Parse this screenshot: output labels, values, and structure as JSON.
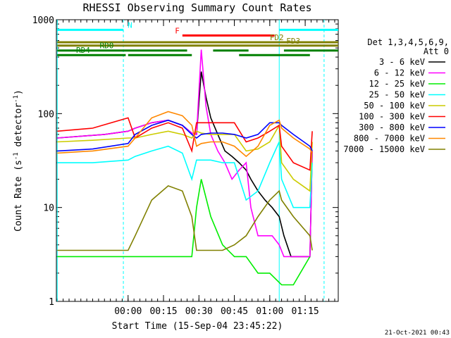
{
  "chart_data": {
    "type": "line",
    "title": "RHESSI Observing Summary Count Rates",
    "xlabel": "Start Time (15-Sep-04 23:45:22)",
    "ylabel_parts": [
      "Count Rate (s",
      "-1",
      " detector",
      "-1",
      ")"
    ],
    "yscale": "log",
    "xlim_min": [
      -15.37,
      104
    ],
    "ylim": [
      1,
      1000
    ],
    "x_ticks": [
      {
        "value": 15,
        "label": "00:00"
      },
      {
        "value": 30,
        "label": "00:15"
      },
      {
        "value": 45,
        "label": "00:30"
      },
      {
        "value": 60,
        "label": "00:45"
      },
      {
        "value": 75,
        "label": "01:00"
      },
      {
        "value": 90,
        "label": "01:15"
      }
    ],
    "y_ticks": [
      {
        "value": 1,
        "label": "1"
      },
      {
        "value": 10,
        "label": "10"
      },
      {
        "value": 100,
        "label": "100"
      },
      {
        "value": 1000,
        "label": "1000"
      }
    ],
    "legend_header": [
      "Det 1,3,4,5,6,9,",
      "Att 0"
    ],
    "legend_placement": "right-outside",
    "series": [
      {
        "name": "3 - 6 keV",
        "color": "#000000",
        "x": [
          -15,
          5,
          15,
          18,
          25,
          32,
          38,
          42,
          44,
          46,
          48,
          50,
          53,
          56,
          59,
          62,
          65,
          67,
          70,
          73,
          76,
          79,
          81,
          84,
          88,
          92,
          93
        ],
        "y": [
          55,
          60,
          65,
          70,
          80,
          85,
          75,
          62,
          60,
          280,
          150,
          90,
          60,
          40,
          35,
          30,
          25,
          20,
          15,
          12,
          10,
          8,
          5,
          3,
          3,
          3,
          40
        ]
      },
      {
        "name": "6 - 12 keV",
        "color": "#ff00ff",
        "x": [
          -15,
          5,
          15,
          18,
          25,
          32,
          38,
          42,
          44,
          46,
          48,
          50,
          53,
          56,
          59,
          62,
          65,
          67,
          70,
          73,
          76,
          79,
          81,
          84,
          88,
          92,
          93
        ],
        "y": [
          55,
          60,
          65,
          70,
          80,
          85,
          75,
          62,
          60,
          480,
          120,
          60,
          40,
          30,
          20,
          25,
          30,
          10,
          5,
          5,
          5,
          4,
          3,
          3,
          3,
          3,
          40
        ]
      },
      {
        "name": "12 - 25 keV",
        "color": "#00ee00",
        "x": [
          -15,
          0,
          15,
          18,
          25,
          32,
          38,
          42,
          44,
          46,
          50,
          55,
          60,
          65,
          70,
          75,
          80,
          85,
          92
        ],
        "y": [
          3,
          3,
          3,
          3,
          3,
          3,
          3,
          3,
          10,
          20,
          8,
          4,
          3,
          3,
          2,
          2,
          1.5,
          1.5,
          3
        ]
      },
      {
        "name": "25 - 50 keV",
        "color": "#00ffff",
        "x": [
          -15,
          0,
          15,
          18,
          25,
          32,
          38,
          42,
          44,
          46,
          50,
          55,
          60,
          65,
          70,
          75,
          79,
          80,
          85,
          92,
          93
        ],
        "y": [
          30,
          30,
          32,
          35,
          40,
          45,
          38,
          20,
          32,
          32,
          32,
          30,
          30,
          12,
          15,
          30,
          50,
          20,
          10,
          10,
          30
        ]
      },
      {
        "name": "50 - 100 keV",
        "color": "#cccc00",
        "x": [
          -15,
          0,
          15,
          18,
          25,
          32,
          38,
          42,
          44,
          46,
          50,
          55,
          60,
          65,
          70,
          75,
          79,
          80,
          85,
          92,
          93
        ],
        "y": [
          50,
          52,
          55,
          55,
          60,
          65,
          60,
          55,
          65,
          62,
          60,
          60,
          60,
          40,
          42,
          50,
          75,
          30,
          20,
          15,
          50
        ]
      },
      {
        "name": "100 - 300 keV",
        "color": "#ff0000",
        "x": [
          -15,
          0,
          15,
          18,
          25,
          32,
          38,
          42,
          44,
          46,
          50,
          55,
          60,
          65,
          70,
          75,
          79,
          80,
          85,
          92,
          93
        ],
        "y": [
          65,
          70,
          90,
          55,
          70,
          80,
          70,
          40,
          80,
          80,
          80,
          80,
          80,
          50,
          55,
          65,
          75,
          45,
          30,
          25,
          65
        ]
      },
      {
        "name": "300 - 800 keV",
        "color": "#0000ff",
        "x": [
          -15,
          0,
          15,
          18,
          25,
          32,
          38,
          42,
          44,
          46,
          50,
          55,
          60,
          65,
          70,
          75,
          79,
          80,
          85,
          92,
          93
        ],
        "y": [
          40,
          42,
          48,
          60,
          75,
          85,
          75,
          60,
          55,
          60,
          62,
          62,
          60,
          55,
          60,
          80,
          80,
          75,
          60,
          45,
          40
        ]
      },
      {
        "name": "800 - 7000 keV",
        "color": "#ff8800",
        "x": [
          -15,
          0,
          15,
          18,
          25,
          32,
          38,
          42,
          44,
          46,
          50,
          55,
          60,
          65,
          70,
          75,
          79,
          80,
          85,
          92,
          93
        ],
        "y": [
          38,
          40,
          45,
          55,
          90,
          105,
          95,
          75,
          45,
          48,
          50,
          50,
          45,
          35,
          45,
          75,
          85,
          70,
          55,
          42,
          38
        ]
      },
      {
        "name": "7000 - 15000 keV",
        "color": "#808000",
        "x": [
          -15,
          0,
          15,
          18,
          25,
          32,
          38,
          42,
          44,
          46,
          50,
          55,
          60,
          65,
          70,
          75,
          79,
          80,
          85,
          92,
          93
        ],
        "y": [
          3.5,
          3.5,
          3.5,
          5,
          12,
          17,
          15,
          8,
          3.5,
          3.5,
          3.5,
          3.5,
          4,
          5,
          8,
          12,
          15,
          12,
          8,
          5,
          3.5
        ]
      }
    ],
    "flags": [
      {
        "label": "N",
        "color": "#00ffff",
        "y_value": 780,
        "segments": [
          [
            -15,
            13
          ],
          [
            79,
            104
          ]
        ]
      },
      {
        "label": "F",
        "color": "#ff0000",
        "y_value": 680,
        "segments": [
          [
            38,
            77
          ]
        ]
      },
      {
        "label": "FD2",
        "color": "#808000",
        "y_value": 575,
        "segments": [
          [
            -15,
            104
          ]
        ]
      },
      {
        "label": "FD3",
        "color": "#808000",
        "y_value": 530,
        "segments": [
          [
            -15,
            104
          ]
        ]
      },
      {
        "label": "RD0",
        "color": "#008000",
        "y_value": 470,
        "segments": [
          [
            -15,
            40
          ],
          [
            51,
            66
          ],
          [
            81,
            104
          ]
        ]
      },
      {
        "label": "RD4",
        "color": "#008000",
        "y_value": 420,
        "segments": [
          [
            -15,
            14
          ],
          [
            15,
            42
          ],
          [
            62,
            92
          ]
        ]
      }
    ],
    "vlines": [
      {
        "x": -15,
        "color": "#00ffff",
        "style": "solid"
      },
      {
        "x": 13,
        "color": "#00ffff",
        "style": "dashed"
      },
      {
        "x": 79,
        "color": "#00ffff",
        "style": "solid"
      },
      {
        "x": 98,
        "color": "#00ffff",
        "style": "dashed"
      }
    ],
    "footer": "21-Oct-2021 00:43"
  }
}
